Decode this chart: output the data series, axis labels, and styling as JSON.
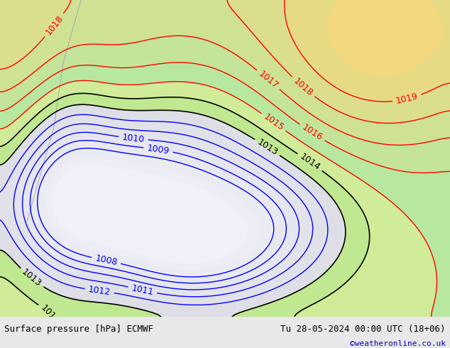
{
  "title_left": "Surface pressure [hPa] ECMWF",
  "title_right": "Tu 28-05-2024 00:00 UTC (18+06)",
  "copyright": "©weatheronline.co.uk",
  "bg_color": "#e8e8e8",
  "land_color_high": "#b8e8a0",
  "land_color_mid": "#d0f0b8",
  "sea_color": "#f0f0f0",
  "contour_colors": {
    "high": "#ff0000",
    "mid": "#000000",
    "low": "#0000ff"
  },
  "pressure_high_thresh": 1015,
  "pressure_low_thresh": 1013,
  "font_size_label": 9,
  "font_size_title": 9,
  "font_size_copyright": 8
}
